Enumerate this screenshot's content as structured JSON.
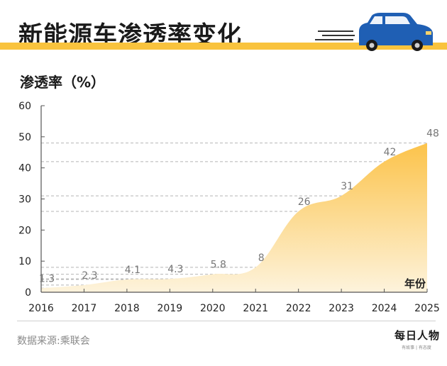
{
  "header": {
    "title": "新能源车渗透率变化"
  },
  "footer": {
    "source": "数据来源:乘联会",
    "brand": "每日人物",
    "brand_sub": "有故事 | 有态度"
  },
  "colors": {
    "accent": "#f9c33d",
    "area_top": "#fcc34a",
    "area_bottom": "#fdf3dc",
    "car_body": "#1f5fb4"
  },
  "chart_data": {
    "type": "area",
    "ylabel": "渗透率（%）",
    "xlabel": "年份",
    "x": [
      "2016",
      "2017",
      "2018",
      "2019",
      "2020",
      "2021",
      "2022",
      "2023",
      "2024",
      "2025"
    ],
    "values": [
      1.3,
      2.3,
      4.1,
      4.3,
      5.8,
      8,
      26,
      31,
      42,
      48
    ],
    "data_labels": [
      "1.3",
      "2.3",
      "4.1",
      "4.3",
      "5.8",
      "8",
      "26",
      "31",
      "42",
      "48"
    ],
    "yticks": [
      0,
      10,
      20,
      30,
      40,
      50,
      60
    ],
    "ylim": [
      0,
      60
    ],
    "grid": false
  }
}
